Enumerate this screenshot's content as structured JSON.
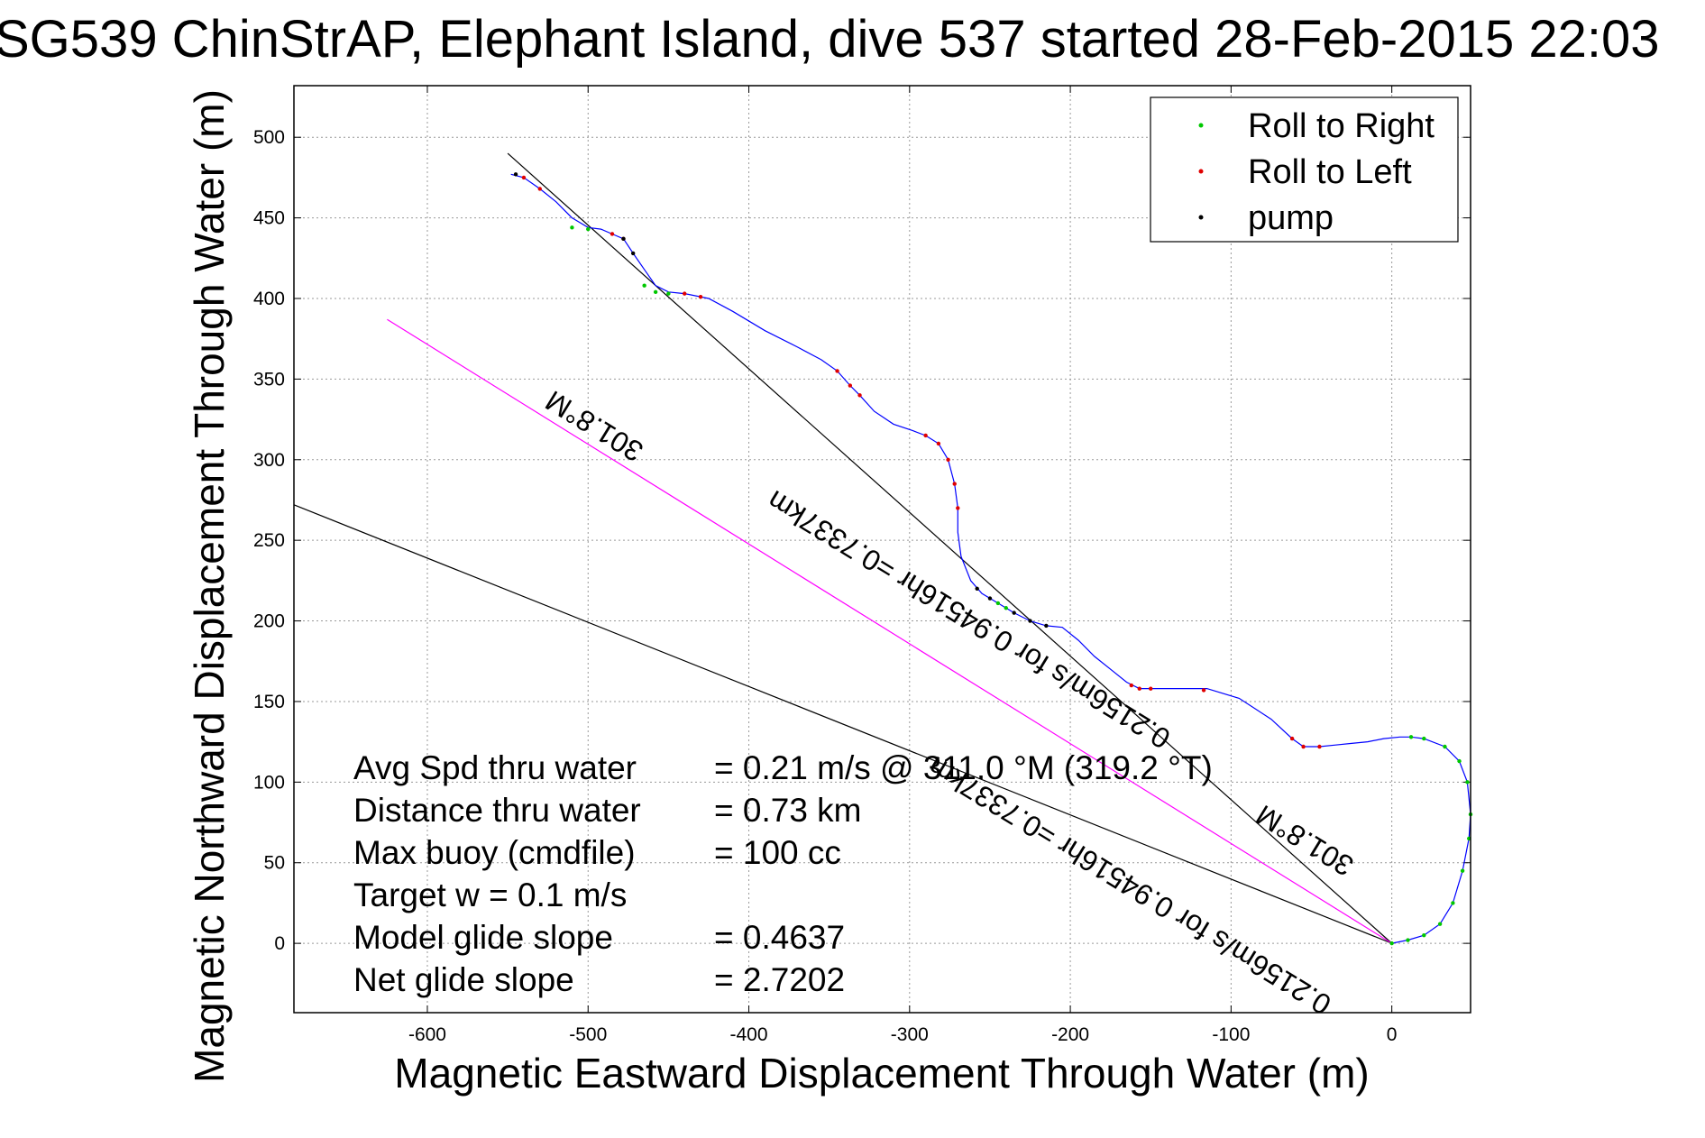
{
  "chart_data": {
    "type": "scatter",
    "title": "SG539 ChinStrAP, Elephant Island, dive 537 started 28-Feb-2015 22:03",
    "xlabel": "Magnetic Eastward Displacement Through Water (m)",
    "ylabel": "Magnetic Northward Displacement Through Water (m)",
    "xlim": [
      -683,
      49
    ],
    "ylim": [
      -43,
      532
    ],
    "xticks": [
      -600,
      -500,
      -400,
      -300,
      -200,
      -100,
      0
    ],
    "yticks": [
      0,
      50,
      100,
      150,
      200,
      250,
      300,
      350,
      400,
      450,
      500
    ],
    "grid": true,
    "legend": {
      "placement": "top-right",
      "entries": [
        {
          "label": "Roll to Right",
          "color": "#00c800"
        },
        {
          "label": "Roll to Left",
          "color": "#e00000"
        },
        {
          "label": "pump",
          "color": "#000000"
        }
      ]
    },
    "series": [
      {
        "name": "track",
        "color": "#0000ff",
        "x": [
          0,
          10,
          20,
          30,
          38,
          44,
          48,
          49,
          47,
          42,
          33,
          20,
          12,
          5,
          -5,
          -15,
          -25,
          -35,
          -45,
          -55,
          -62,
          -75,
          -95,
          -115,
          -135,
          -150,
          -157,
          -165,
          -175,
          -185,
          -195,
          -205,
          -215,
          -225,
          -235,
          -245,
          -255,
          -262,
          -268,
          -270,
          -270,
          -272,
          -276,
          -282,
          -290,
          -298,
          -310,
          -322,
          -331,
          -337,
          -345,
          -355,
          -370,
          -390,
          -410,
          -425,
          -440,
          -450,
          -458,
          -465,
          -472,
          -478,
          -485,
          -492,
          -500,
          -510,
          -520,
          -530,
          -540,
          -548
        ],
        "y": [
          0,
          2,
          5,
          12,
          25,
          45,
          65,
          80,
          100,
          113,
          122,
          127,
          128,
          128,
          127,
          125,
          124,
          123,
          122,
          122,
          127,
          139,
          152,
          158,
          158,
          158,
          158,
          162,
          170,
          178,
          188,
          196,
          197,
          200,
          205,
          211,
          217,
          225,
          240,
          255,
          270,
          285,
          300,
          310,
          315,
          318,
          322,
          330,
          340,
          346,
          355,
          362,
          370,
          380,
          392,
          400,
          403,
          404,
          408,
          418,
          428,
          437,
          440,
          443,
          444,
          450,
          460,
          468,
          475,
          477
        ]
      },
      {
        "name": "Roll to Right",
        "color": "#00c800",
        "x": [
          0,
          10,
          20,
          30,
          38,
          44,
          48,
          49,
          47,
          42,
          33,
          20,
          12,
          -240,
          -245,
          -450,
          -458,
          -465,
          -500,
          -510
        ],
        "y": [
          0,
          2,
          5,
          12,
          25,
          45,
          65,
          80,
          100,
          113,
          122,
          127,
          128,
          208,
          211,
          403,
          404,
          408,
          443,
          444
        ]
      },
      {
        "name": "Roll to Left",
        "color": "#e00000",
        "x": [
          -45,
          -55,
          -62,
          -117,
          -150,
          -157,
          -162,
          -270,
          -272,
          -276,
          -282,
          -290,
          -331,
          -337,
          -345,
          -430,
          -440,
          -478,
          -485,
          -530,
          -540
        ],
        "y": [
          122,
          122,
          127,
          157,
          158,
          158,
          160,
          270,
          285,
          300,
          310,
          315,
          340,
          346,
          355,
          401,
          403,
          437,
          440,
          468,
          475
        ]
      },
      {
        "name": "pump",
        "color": "#000000",
        "x": [
          -215,
          -225,
          -235,
          -250,
          -258,
          -472,
          -478,
          -545
        ],
        "y": [
          197,
          200,
          205,
          214,
          220,
          428,
          437,
          477
        ]
      }
    ],
    "reference_lines": [
      {
        "color": "#000000",
        "x": [
          0,
          -550
        ],
        "y": [
          0,
          490
        ]
      },
      {
        "color": "#000000",
        "x": [
          0,
          -683
        ],
        "y": [
          0,
          272
        ]
      },
      {
        "color": "#ff00ff",
        "x": [
          0,
          -625
        ],
        "y": [
          0,
          387
        ]
      }
    ],
    "stats": [
      {
        "label": "Avg Spd thru water",
        "value": "=  0.21 m/s @ 311.0 °M (319.2 °T)"
      },
      {
        "label": "Distance thru water",
        "value": "=  0.73 km"
      },
      {
        "label": "Max buoy (cmdfile)",
        "value": "= 100 cc"
      },
      {
        "label": "Target w    = 0.1 m/s",
        "value": ""
      },
      {
        "label": "Model glide slope",
        "value": "= 0.4637"
      },
      {
        "label": "Net glide slope",
        "value": "= 2.7202"
      }
    ],
    "line_labels": [
      {
        "text": "301.8°M",
        "at": [
          -493,
          326
        ]
      },
      {
        "text": "0.2156m/s for 0.94516hr =0.7337km",
        "at": [
          -260,
          206
        ]
      },
      {
        "text": "301.8°M",
        "at": [
          -51,
          69
        ]
      },
      {
        "text": "0.2156m/s for 0.94516hr =0.7337km",
        "at": [
          -160,
          41
        ]
      }
    ]
  }
}
